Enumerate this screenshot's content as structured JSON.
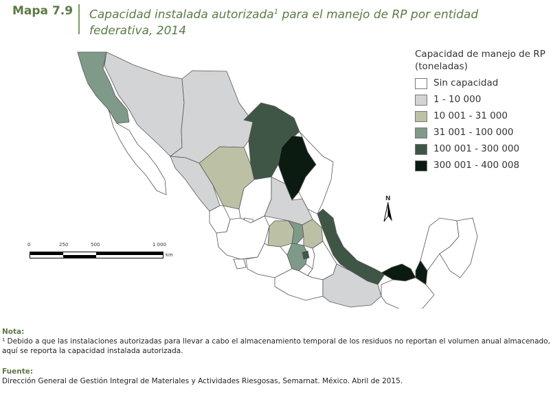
{
  "header": {
    "map_number": "Mapa 7.9",
    "title_part1": "Capacidad instalada autorizada",
    "title_sup": "1",
    "title_part2": " para el manejo de RP por entidad federativa, 2014"
  },
  "legend": {
    "title": "Capacidad de manejo de RP (toneladas)",
    "items": [
      {
        "label": "Sin capacidad",
        "color": "#ffffff"
      },
      {
        "label": "1 - 10 000",
        "color": "#d3d4d6"
      },
      {
        "label": "10 001 - 31 000",
        "color": "#bcc1a6"
      },
      {
        "label": "31 001 - 100 000",
        "color": "#7f9a89"
      },
      {
        "label": "100 001 - 300 000",
        "color": "#3f5646"
      },
      {
        "label": "300 001 - 400 008",
        "color": "#0b1b12"
      }
    ]
  },
  "scale": {
    "ticks": [
      "0",
      "250",
      "500",
      "1 000"
    ],
    "unit": "km"
  },
  "north_label": "N",
  "notes": {
    "heading": "Nota:",
    "text": "¹ Debido a que las instalaciones autorizadas para llevar a cabo el almacenamiento temporal de los residuos no reportan el volumen anual almacenado, aquí se reporta la capacidad instalada autorizada."
  },
  "source": {
    "heading": "Fuente:",
    "text": "Dirección General de Gestión Integral de Materiales y Actividades Riesgosas, Semarnat. México. Abril de 2015."
  }
}
